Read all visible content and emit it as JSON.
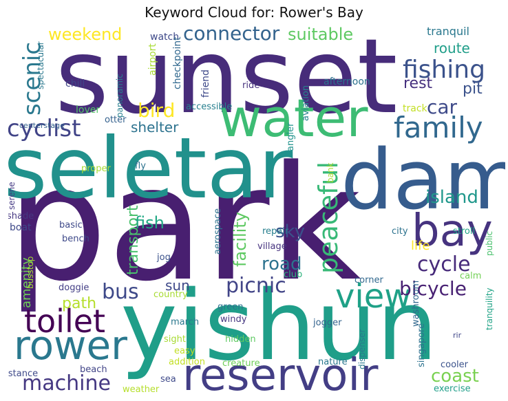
{
  "title": "Keyword Cloud for: Rower's Bay",
  "words": [
    {
      "text": "park",
      "color": "#481f70"
    },
    {
      "text": "sunset",
      "color": "#472c7a"
    },
    {
      "text": "seletar",
      "color": "#21918c"
    },
    {
      "text": "yishun",
      "color": "#1f9e89"
    },
    {
      "text": "dam",
      "color": "#365c8d"
    },
    {
      "text": "water",
      "color": "#3dbc74"
    },
    {
      "text": "reservoir",
      "color": "#433e85"
    },
    {
      "text": "rower",
      "color": "#2a788e"
    },
    {
      "text": "toilet",
      "color": "#440154"
    },
    {
      "text": "bay",
      "color": "#46337f"
    },
    {
      "text": "view",
      "color": "#1fa187"
    },
    {
      "text": "family",
      "color": "#31688e"
    },
    {
      "text": "fishing",
      "color": "#3b528b"
    },
    {
      "text": "peaceful",
      "color": "#38b977"
    },
    {
      "text": "cyclist",
      "color": "#414487"
    },
    {
      "text": "machine",
      "color": "#453882"
    },
    {
      "text": "picnic",
      "color": "#414487"
    },
    {
      "text": "connector",
      "color": "#33638d"
    },
    {
      "text": "scenic",
      "color": "#2a788e"
    },
    {
      "text": "suitable",
      "color": "#5ec962"
    },
    {
      "text": "island",
      "color": "#1f978b"
    },
    {
      "text": "cycle",
      "color": "#472a7a"
    },
    {
      "text": "bicycle",
      "color": "#482173"
    },
    {
      "text": "bus",
      "color": "#3e4989"
    },
    {
      "text": "coast",
      "color": "#7ad151"
    },
    {
      "text": "car",
      "color": "#3e4a89"
    },
    {
      "text": "road",
      "color": "#2c728e"
    },
    {
      "text": "sky",
      "color": "#3b528b"
    },
    {
      "text": "weekend",
      "color": "#fde725"
    },
    {
      "text": "bird",
      "color": "#fde725"
    },
    {
      "text": "shelter",
      "color": "#2c728e"
    },
    {
      "text": "route",
      "color": "#1f9e89"
    },
    {
      "text": "rest",
      "color": "#46307e"
    },
    {
      "text": "pit",
      "color": "#3b528b"
    },
    {
      "text": "facility",
      "color": "#5ec962"
    },
    {
      "text": "transport",
      "color": "#4ac16d"
    },
    {
      "text": "fish",
      "color": "#22a884"
    },
    {
      "text": "amenity",
      "color": "#6ece58"
    },
    {
      "text": "path",
      "color": "#b5de2b"
    },
    {
      "text": "sun",
      "color": "#3e4989"
    },
    {
      "text": "life",
      "color": "#fde725"
    },
    {
      "text": "tranquil",
      "color": "#2a788e"
    },
    {
      "text": "watch",
      "color": "#3e4989"
    },
    {
      "text": "airport",
      "color": "#a8db34"
    },
    {
      "text": "checkpoint",
      "color": "#31688e"
    },
    {
      "text": "friend",
      "color": "#3e4989"
    },
    {
      "text": "ride",
      "color": "#46327e"
    },
    {
      "text": "afternoon",
      "color": "#2c728e"
    },
    {
      "text": "aviation",
      "color": "#26828e"
    },
    {
      "text": "track",
      "color": "#c2df23"
    },
    {
      "text": "spectacular",
      "color": "#2a788e"
    },
    {
      "text": "chill",
      "color": "#404688"
    },
    {
      "text": "panoramic",
      "color": "#277f8e"
    },
    {
      "text": "lover",
      "color": "#54c568"
    },
    {
      "text": "accessible",
      "color": "#277f8e"
    },
    {
      "text": "otter",
      "color": "#34618d"
    },
    {
      "text": "centerstage",
      "color": "#34618d"
    },
    {
      "text": "angler",
      "color": "#20928c"
    },
    {
      "text": "proper",
      "color": "#a8db34"
    },
    {
      "text": "fly",
      "color": "#2c728e"
    },
    {
      "text": "bank",
      "color": "#a8db34"
    },
    {
      "text": "stroll",
      "color": "#20a386"
    },
    {
      "text": "serene",
      "color": "#443983"
    },
    {
      "text": "shade",
      "color": "#453781"
    },
    {
      "text": "boat",
      "color": "#3e4989"
    },
    {
      "text": "basic",
      "color": "#3e4989"
    },
    {
      "text": "aerospace",
      "color": "#2c728e"
    },
    {
      "text": "repair",
      "color": "#277f8e"
    },
    {
      "text": "city",
      "color": "#2c728e"
    },
    {
      "text": "public",
      "color": "#4ac16d"
    },
    {
      "text": "bench",
      "color": "#3e4989"
    },
    {
      "text": "village",
      "color": "#46337f"
    },
    {
      "text": "busstop",
      "color": "#a8db34"
    },
    {
      "text": "jog",
      "color": "#3b528b"
    },
    {
      "text": "club",
      "color": "#2db27d"
    },
    {
      "text": "calm",
      "color": "#73d056"
    },
    {
      "text": "corner",
      "color": "#31688e"
    },
    {
      "text": "doggie",
      "color": "#433e85"
    },
    {
      "text": "country",
      "color": "#a8db34"
    },
    {
      "text": "green",
      "color": "#2c728e"
    },
    {
      "text": "washroom",
      "color": "#31688e"
    },
    {
      "text": "tranquility",
      "color": "#20a386"
    },
    {
      "text": "windy",
      "color": "#453781"
    },
    {
      "text": "march",
      "color": "#2a788e"
    },
    {
      "text": "jogger",
      "color": "#33638d"
    },
    {
      "text": "singapore",
      "color": "#2c728e"
    },
    {
      "text": "dispenser",
      "color": "#2a788e"
    },
    {
      "text": "rir",
      "color": "#404688"
    },
    {
      "text": "sight",
      "color": "#a8db34"
    },
    {
      "text": "hidden",
      "color": "#5ec962"
    },
    {
      "text": "easy",
      "color": "#c2df23"
    },
    {
      "text": "addition",
      "color": "#c2df23"
    },
    {
      "text": "creature",
      "color": "#6ece58"
    },
    {
      "text": "nature",
      "color": "#2a788e"
    },
    {
      "text": "cooler",
      "color": "#3b528b"
    },
    {
      "text": "distance",
      "color": "#3e4989"
    },
    {
      "text": "beach",
      "color": "#414487"
    },
    {
      "text": "sea",
      "color": "#3e4989"
    },
    {
      "text": "weather",
      "color": "#b5de2b"
    },
    {
      "text": "exercise",
      "color": "#1f9e89"
    }
  ]
}
